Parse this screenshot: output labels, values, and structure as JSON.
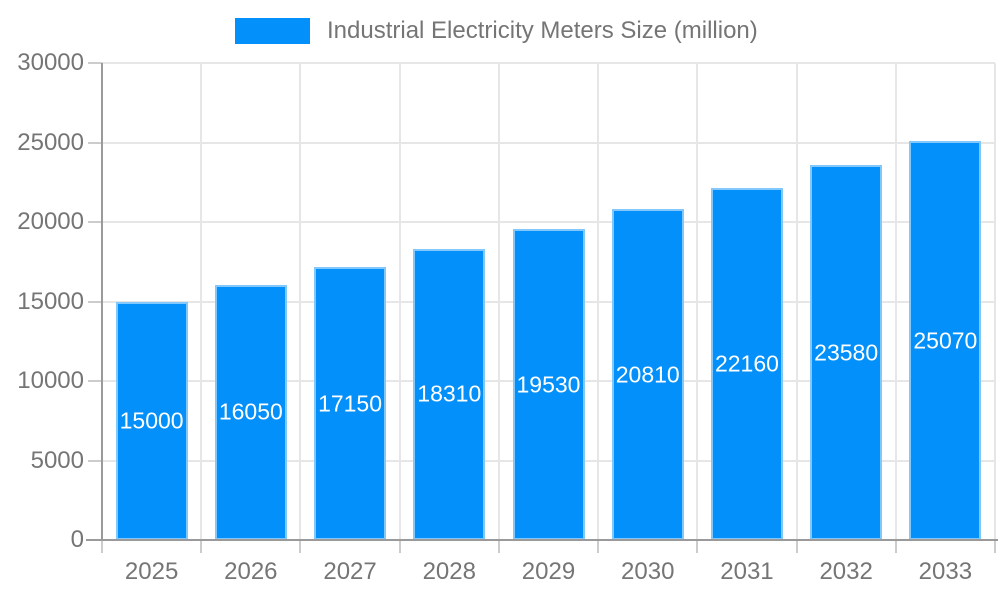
{
  "chart_data": {
    "type": "bar",
    "title": "Industrial Electricity Meters Size (million)",
    "categories": [
      "2025",
      "2026",
      "2027",
      "2028",
      "2029",
      "2030",
      "2031",
      "2032",
      "2033"
    ],
    "values": [
      15000,
      16050,
      17150,
      18310,
      19530,
      20810,
      22160,
      23580,
      25070
    ],
    "xlabel": "",
    "ylabel": "",
    "ylim": [
      0,
      30000
    ],
    "yticks": [
      0,
      5000,
      10000,
      15000,
      20000,
      25000,
      30000
    ],
    "grid": true,
    "legend_position": "top",
    "value_labels": "centered-inside-bars",
    "colors": {
      "bar": "#0490fa",
      "bar_edge": "rgba(255,255,255,0.5)",
      "gridline": "#e6e6e6",
      "axis_line": "#9a9a9a",
      "tick_mark": "#cccccc",
      "axis_label": "#757575",
      "value_label": "#ffffff",
      "background": "#ffffff"
    }
  }
}
